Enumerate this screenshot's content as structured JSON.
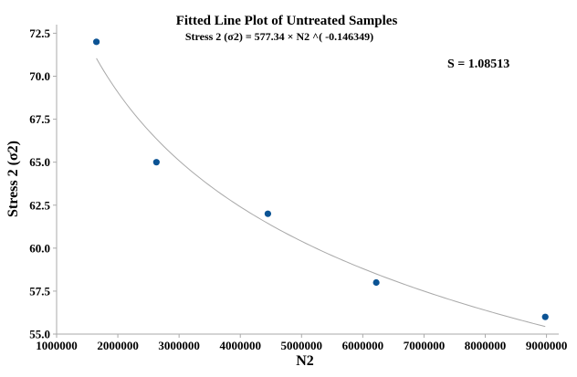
{
  "chart_data": {
    "type": "scatter",
    "title": "Fitted Line Plot of Untreated Samples",
    "subtitle": "Stress 2 (σ2) = 577.34 × N2 ^( -0.146349)",
    "annotation": "S = 1.08513",
    "xlabel": "N2",
    "ylabel": "Stress 2 (σ2)",
    "xlim": [
      1000000,
      9200000
    ],
    "ylim": [
      55,
      73
    ],
    "x_ticks": [
      1000000,
      2000000,
      3000000,
      4000000,
      5000000,
      6000000,
      7000000,
      8000000,
      9000000
    ],
    "x_tick_labels": [
      "1000000",
      "2000000",
      "3000000",
      "4000000",
      "5000000",
      "6000000",
      "7000000",
      "8000000",
      "9000000"
    ],
    "y_ticks": [
      55.0,
      57.5,
      60.0,
      62.5,
      65.0,
      67.5,
      70.0,
      72.5
    ],
    "y_tick_labels": [
      "55.0",
      "57.5",
      "60.0",
      "62.5",
      "65.0",
      "67.5",
      "70.0",
      "72.5"
    ],
    "points": [
      {
        "x": 1650000,
        "y": 72
      },
      {
        "x": 2630000,
        "y": 65
      },
      {
        "x": 4450000,
        "y": 62
      },
      {
        "x": 6220000,
        "y": 58
      },
      {
        "x": 8980000,
        "y": 56
      }
    ],
    "fit": {
      "coefficient": 577.34,
      "exponent": -0.146349,
      "x_range": [
        1650000,
        8980000
      ]
    },
    "grid": false,
    "colors": {
      "points": "#0b5394",
      "fit_line": "#a8a8a8",
      "axis": "#aaaaaa"
    }
  }
}
